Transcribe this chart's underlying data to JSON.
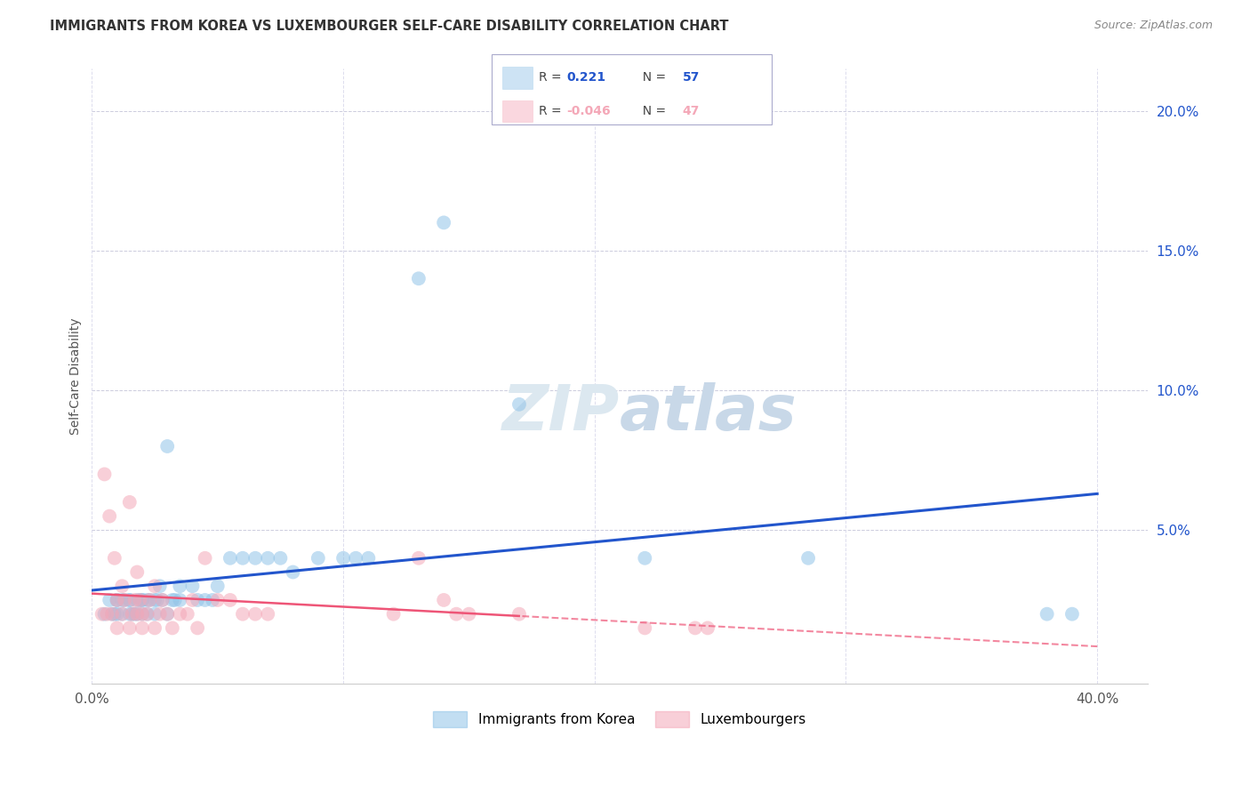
{
  "title": "IMMIGRANTS FROM KOREA VS LUXEMBOURGER SELF-CARE DISABILITY CORRELATION CHART",
  "source": "Source: ZipAtlas.com",
  "ylabel": "Self-Care Disability",
  "xlim": [
    0.0,
    0.42
  ],
  "ylim": [
    -0.005,
    0.215
  ],
  "xticks": [
    0.0,
    0.1,
    0.2,
    0.3,
    0.4
  ],
  "xtick_labels": [
    "0.0%",
    "",
    "",
    "",
    "40.0%"
  ],
  "yticks_right": [
    0.05,
    0.1,
    0.15,
    0.2
  ],
  "ytick_labels_right": [
    "5.0%",
    "10.0%",
    "15.0%",
    "20.0%"
  ],
  "blue_color": "#91C3E8",
  "pink_color": "#F4A8B8",
  "blue_line_color": "#2255CC",
  "pink_line_color": "#EE5577",
  "blue_scatter_x": [
    0.005,
    0.007,
    0.008,
    0.009,
    0.01,
    0.01,
    0.01,
    0.012,
    0.012,
    0.013,
    0.015,
    0.015,
    0.015,
    0.016,
    0.017,
    0.018,
    0.018,
    0.019,
    0.02,
    0.02,
    0.02,
    0.022,
    0.022,
    0.023,
    0.025,
    0.025,
    0.026,
    0.027,
    0.028,
    0.03,
    0.03,
    0.032,
    0.033,
    0.035,
    0.035,
    0.04,
    0.042,
    0.045,
    0.048,
    0.05,
    0.055,
    0.06,
    0.065,
    0.07,
    0.075,
    0.08,
    0.09,
    0.1,
    0.105,
    0.11,
    0.13,
    0.14,
    0.17,
    0.22,
    0.285,
    0.38,
    0.39
  ],
  "blue_scatter_y": [
    0.02,
    0.025,
    0.02,
    0.02,
    0.02,
    0.025,
    0.025,
    0.02,
    0.025,
    0.025,
    0.02,
    0.025,
    0.025,
    0.02,
    0.02,
    0.02,
    0.025,
    0.025,
    0.02,
    0.025,
    0.025,
    0.02,
    0.025,
    0.025,
    0.02,
    0.025,
    0.025,
    0.03,
    0.025,
    0.02,
    0.08,
    0.025,
    0.025,
    0.025,
    0.03,
    0.03,
    0.025,
    0.025,
    0.025,
    0.03,
    0.04,
    0.04,
    0.04,
    0.04,
    0.04,
    0.035,
    0.04,
    0.04,
    0.04,
    0.04,
    0.14,
    0.16,
    0.095,
    0.04,
    0.04,
    0.02,
    0.02
  ],
  "pink_scatter_x": [
    0.004,
    0.005,
    0.006,
    0.007,
    0.008,
    0.009,
    0.01,
    0.01,
    0.012,
    0.012,
    0.013,
    0.015,
    0.015,
    0.016,
    0.017,
    0.018,
    0.018,
    0.019,
    0.02,
    0.02,
    0.022,
    0.023,
    0.025,
    0.025,
    0.027,
    0.028,
    0.03,
    0.032,
    0.035,
    0.038,
    0.04,
    0.042,
    0.045,
    0.05,
    0.055,
    0.06,
    0.065,
    0.07,
    0.12,
    0.13,
    0.14,
    0.145,
    0.15,
    0.17,
    0.22,
    0.24,
    0.245
  ],
  "pink_scatter_y": [
    0.02,
    0.07,
    0.02,
    0.055,
    0.02,
    0.04,
    0.015,
    0.025,
    0.02,
    0.03,
    0.025,
    0.015,
    0.06,
    0.02,
    0.025,
    0.02,
    0.035,
    0.025,
    0.015,
    0.02,
    0.02,
    0.025,
    0.015,
    0.03,
    0.02,
    0.025,
    0.02,
    0.015,
    0.02,
    0.02,
    0.025,
    0.015,
    0.04,
    0.025,
    0.025,
    0.02,
    0.02,
    0.02,
    0.02,
    0.04,
    0.025,
    0.02,
    0.02,
    0.02,
    0.015,
    0.015,
    0.015
  ]
}
